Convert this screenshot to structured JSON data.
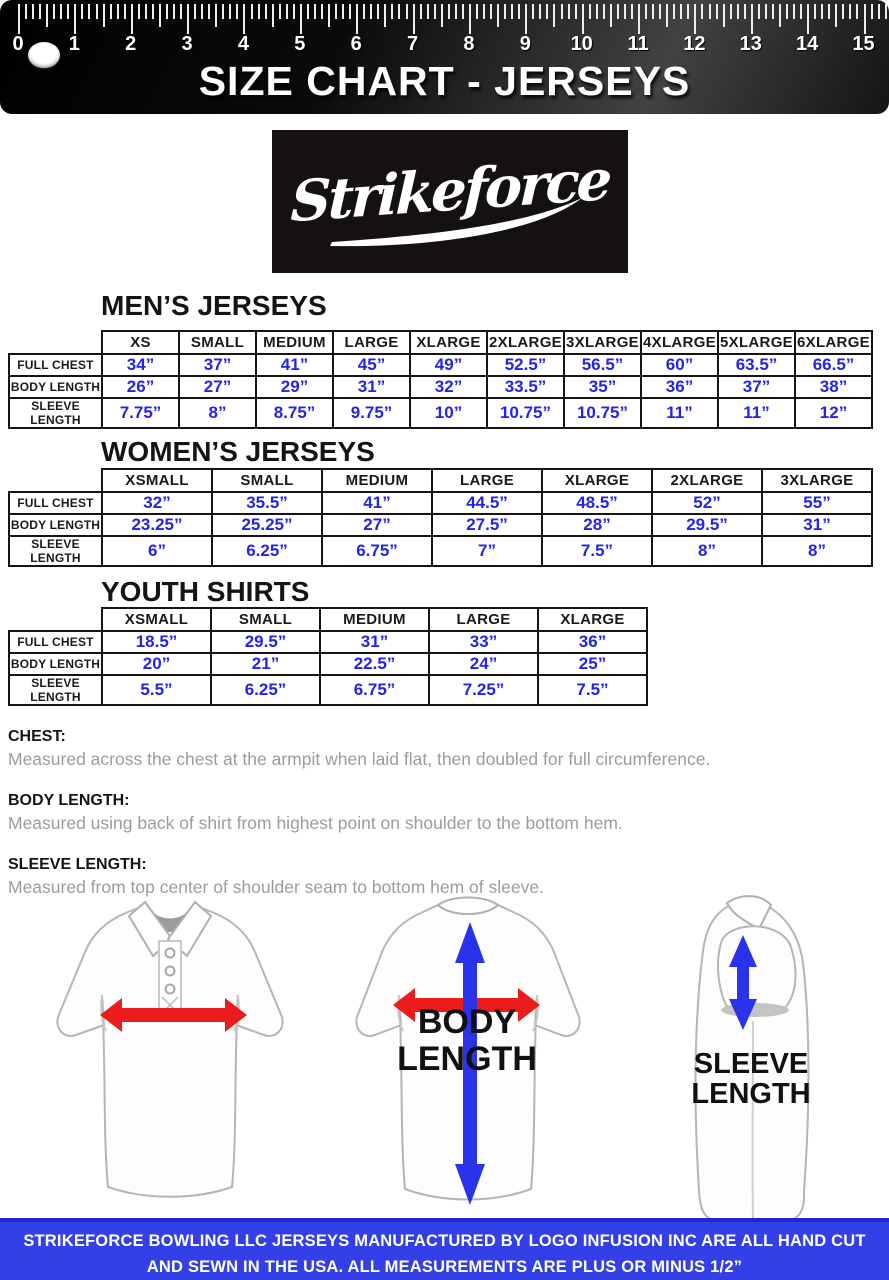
{
  "ruler": {
    "title": "SIZE CHART - JERSEYS",
    "numbers": [
      "0",
      "1",
      "2",
      "3",
      "4",
      "5",
      "6",
      "7",
      "8",
      "9",
      "10",
      "11",
      "12",
      "13",
      "14",
      "15"
    ]
  },
  "logo": {
    "text": "Strikeforce"
  },
  "sections": {
    "mens": {
      "title": "MEN’S JERSEYS",
      "columns": [
        "XS",
        "SMALL",
        "MEDIUM",
        "LARGE",
        "XLARGE",
        "2XLARGE",
        "3XLARGE",
        "4XLARGE",
        "5XLARGE",
        "6XLARGE"
      ],
      "rows": [
        {
          "label": "FULL CHEST",
          "values": [
            "34”",
            "37”",
            "41”",
            "45”",
            "49”",
            "52.5”",
            "56.5”",
            "60”",
            "63.5”",
            "66.5”"
          ]
        },
        {
          "label": "BODY LENGTH",
          "values": [
            "26”",
            "27”",
            "29”",
            "31”",
            "32”",
            "33.5”",
            "35”",
            "36”",
            "37”",
            "38”"
          ]
        },
        {
          "label": "SLEEVE LENGTH",
          "values": [
            "7.75”",
            "8”",
            "8.75”",
            "9.75”",
            "10”",
            "10.75”",
            "10.75”",
            "11”",
            "11”",
            "12”"
          ]
        }
      ]
    },
    "womens": {
      "title": "WOMEN’S JERSEYS",
      "columns": [
        "XSMALL",
        "SMALL",
        "MEDIUM",
        "LARGE",
        "XLARGE",
        "2XLARGE",
        "3XLARGE"
      ],
      "rows": [
        {
          "label": "FULL CHEST",
          "values": [
            "32”",
            "35.5”",
            "41”",
            "44.5”",
            "48.5”",
            "52”",
            "55”"
          ]
        },
        {
          "label": "BODY LENGTH",
          "values": [
            "23.25”",
            "25.25”",
            "27”",
            "27.5”",
            "28”",
            "29.5”",
            "31”"
          ]
        },
        {
          "label": "SLEEVE LENGTH",
          "values": [
            "6”",
            "6.25”",
            "6.75”",
            "7”",
            "7.5”",
            "8”",
            "8”"
          ]
        }
      ]
    },
    "youth": {
      "title": "YOUTH SHIRTS",
      "columns": [
        "XSMALL",
        "SMALL",
        "MEDIUM",
        "LARGE",
        "XLARGE"
      ],
      "rows": [
        {
          "label": "FULL CHEST",
          "values": [
            "18.5”",
            "29.5”",
            "31”",
            "33”",
            "36”"
          ]
        },
        {
          "label": "BODY LENGTH",
          "values": [
            "20”",
            "21”",
            "22.5”",
            "24”",
            "25”"
          ]
        },
        {
          "label": "SLEEVE LENGTH",
          "values": [
            "5.5”",
            "6.25”",
            "6.75”",
            "7.25”",
            "7.5”"
          ]
        }
      ]
    }
  },
  "definitions": [
    {
      "term": "CHEST:",
      "text": "Measured across the chest at the armpit when laid flat, then doubled for full circumference."
    },
    {
      "term": "BODY LENGTH:",
      "text": "Measured using back of shirt from highest point on shoulder to the bottom hem."
    },
    {
      "term": "SLEEVE LENGTH:",
      "text": "Measured from top center of shoulder seam to bottom hem of sleeve."
    }
  ],
  "diagram": {
    "body_line1": "BODY",
    "body_line2": "LENGTH",
    "sleeve_line1": "SLEEVE",
    "sleeve_line2": "LENGTH"
  },
  "footer": {
    "line1": "STRIKEFORCE BOWLING LLC JERSEYS MANUFACTURED BY LOGO INFUSION INC ARE ALL HAND CUT",
    "line2": "AND SEWN IN THE USA.  ALL MEASUREMENTS ARE PLUS OR MINUS 1/2”"
  },
  "colors": {
    "value_blue": "#2323ee",
    "footer_blue": "#3340e8",
    "arrow_red": "#ec1c1c",
    "arrow_blue": "#2a33ea"
  }
}
